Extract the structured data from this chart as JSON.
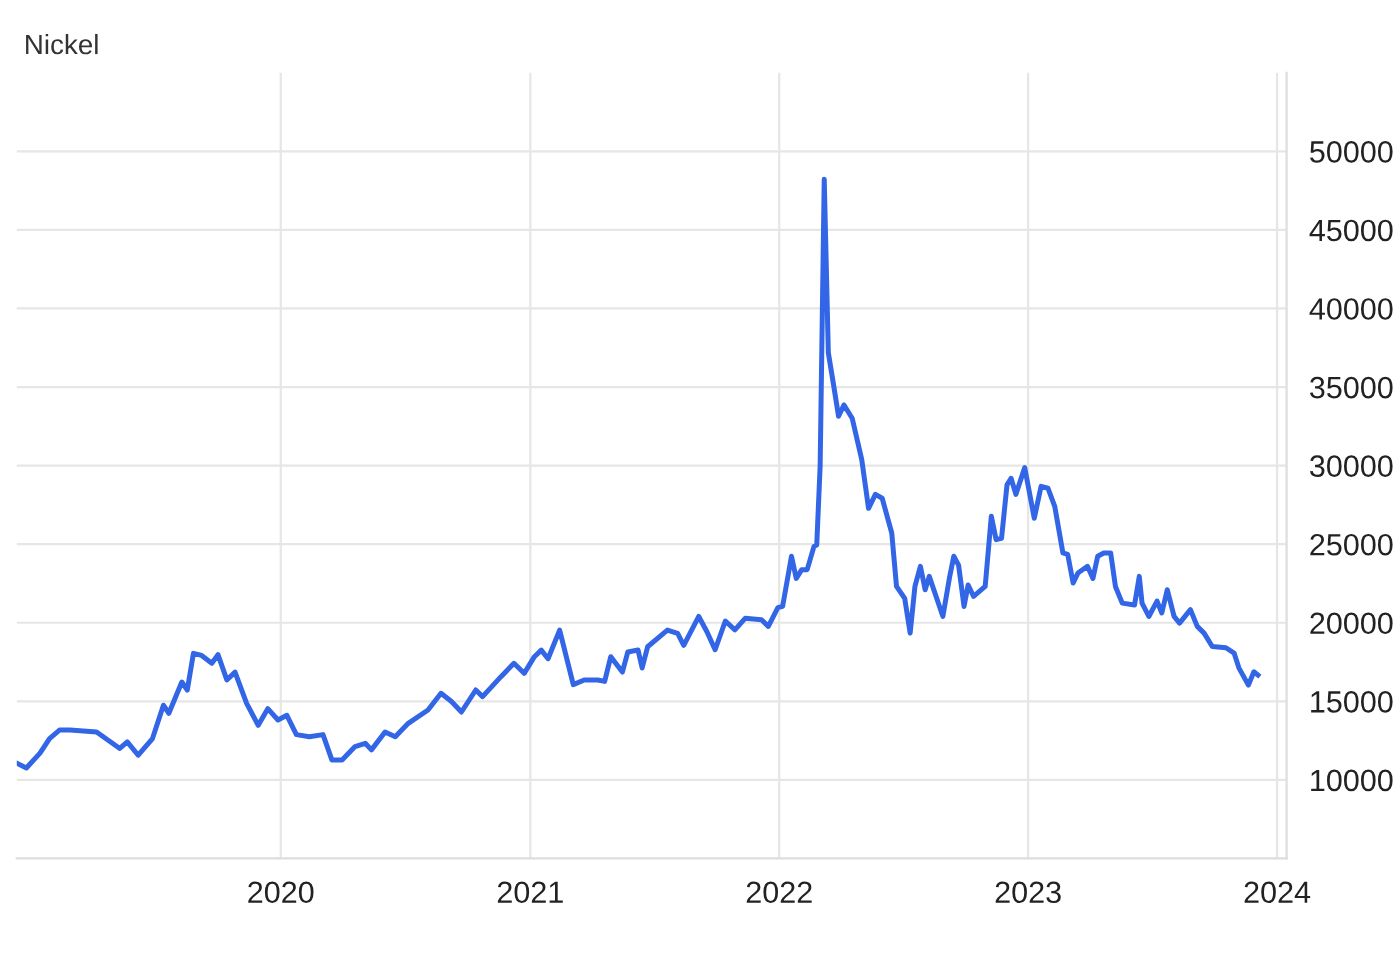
{
  "chart_data": {
    "type": "line",
    "title": "Nickel",
    "x": [
      "2018-12-10",
      "2018-12-24",
      "2019-01-13",
      "2019-01-27",
      "2019-02-11",
      "2019-02-26",
      "2019-04-06",
      "2019-05-10",
      "2019-05-21",
      "2019-06-06",
      "2019-06-27",
      "2019-07-13",
      "2019-07-21",
      "2019-08-09",
      "2019-08-17",
      "2019-08-26",
      "2019-09-07",
      "2019-09-22",
      "2019-10-01",
      "2019-10-14",
      "2019-10-26",
      "2019-11-12",
      "2019-11-29",
      "2019-12-13",
      "2019-12-28",
      "2020-01-10",
      "2020-01-24",
      "2020-02-12",
      "2020-03-03",
      "2020-03-16",
      "2020-03-31",
      "2020-04-19",
      "2020-05-04",
      "2020-05-13",
      "2020-06-02",
      "2020-06-17",
      "2020-07-06",
      "2020-08-04",
      "2020-08-23",
      "2020-09-07",
      "2020-09-22",
      "2020-10-13",
      "2020-10-23",
      "2020-11-19",
      "2020-12-08",
      "2020-12-23",
      "2021-01-07",
      "2021-01-17",
      "2021-01-27",
      "2021-02-13",
      "2021-03-05",
      "2021-03-21",
      "2021-04-10",
      "2021-04-20",
      "2021-04-29",
      "2021-05-16",
      "2021-05-24",
      "2021-06-08",
      "2021-06-14",
      "2021-06-22",
      "2021-07-21",
      "2021-08-05",
      "2021-08-14",
      "2021-09-05",
      "2021-09-17",
      "2021-09-29",
      "2021-10-14",
      "2021-10-28",
      "2021-11-12",
      "2021-12-06",
      "2021-12-16",
      "2021-12-30",
      "2022-01-06",
      "2022-01-19",
      "2022-01-26",
      "2022-02-03",
      "2022-02-11",
      "2022-02-21",
      "2022-02-25",
      "2022-03-02",
      "2022-03-08",
      "2022-03-14",
      "2022-03-22",
      "2022-03-29",
      "2022-04-06",
      "2022-04-18",
      "2022-05-02",
      "2022-05-12",
      "2022-05-22",
      "2022-06-01",
      "2022-06-15",
      "2022-06-22",
      "2022-07-04",
      "2022-07-12",
      "2022-07-19",
      "2022-07-27",
      "2022-08-03",
      "2022-08-09",
      "2022-08-29",
      "2022-09-08",
      "2022-09-14",
      "2022-09-21",
      "2022-09-29",
      "2022-10-05",
      "2022-10-13",
      "2022-10-30",
      "2022-11-08",
      "2022-11-15",
      "2022-11-23",
      "2022-12-01",
      "2022-12-07",
      "2022-12-14",
      "2022-12-27",
      "2023-01-10",
      "2023-01-20",
      "2023-01-30",
      "2023-02-09",
      "2023-02-21",
      "2023-02-28",
      "2023-03-08",
      "2023-03-15",
      "2023-03-29",
      "2023-04-06",
      "2023-04-13",
      "2023-04-22",
      "2023-05-02",
      "2023-05-09",
      "2023-05-19",
      "2023-06-06",
      "2023-06-13",
      "2023-06-17",
      "2023-06-27",
      "2023-07-09",
      "2023-07-16",
      "2023-07-24",
      "2023-08-03",
      "2023-08-11",
      "2023-08-27",
      "2023-09-06",
      "2023-09-16",
      "2023-09-28",
      "2023-10-18",
      "2023-10-30",
      "2023-11-06",
      "2023-11-20",
      "2023-11-28",
      "2023-12-04"
    ],
    "series": [
      {
        "color": "#3366e6",
        "values": [
          11060,
          10760,
          11700,
          12630,
          13180,
          13180,
          13050,
          12000,
          12420,
          11570,
          12630,
          14750,
          14240,
          16230,
          15720,
          18050,
          17920,
          17420,
          17970,
          16360,
          16860,
          14870,
          13470,
          14530,
          13810,
          14110,
          12880,
          12750,
          12880,
          11270,
          11270,
          12120,
          12330,
          11910,
          13050,
          12750,
          13600,
          14450,
          15510,
          15000,
          14320,
          15720,
          15300,
          16570,
          17420,
          16780,
          17840,
          18260,
          17710,
          19530,
          16060,
          16360,
          16360,
          16270,
          17840,
          16860,
          18140,
          18260,
          17120,
          18470,
          19530,
          19320,
          18560,
          20400,
          19430,
          18280,
          20110,
          19550,
          20280,
          20190,
          19770,
          20960,
          21040,
          24230,
          22820,
          23380,
          23380,
          24860,
          24950,
          29960,
          48220,
          37180,
          35050,
          33140,
          33860,
          33010,
          30380,
          27280,
          28170,
          27920,
          25710,
          22310,
          21550,
          19340,
          22310,
          23590,
          22100,
          22950,
          20400,
          22950,
          24230,
          23670,
          21040,
          22400,
          21680,
          22310,
          26770,
          25290,
          25370,
          28770,
          29190,
          28170,
          29870,
          26650,
          28680,
          28560,
          27410,
          24440,
          24350,
          22530,
          23160,
          23590,
          22820,
          24230,
          24440,
          24440,
          22310,
          21250,
          21130,
          22950,
          21250,
          20400,
          21380,
          20620,
          22100,
          20400,
          19980,
          20830,
          19770,
          19340,
          18490,
          18410,
          18070,
          17130,
          16030,
          16880,
          16670
        ]
      }
    ],
    "xlim": [
      "2018-12-10",
      "2024-01-15"
    ],
    "xticks": [
      {
        "value": "2020-01-01",
        "label": "2020"
      },
      {
        "value": "2021-01-01",
        "label": "2021"
      },
      {
        "value": "2022-01-01",
        "label": "2022"
      },
      {
        "value": "2023-01-01",
        "label": "2023"
      },
      {
        "value": "2024-01-01",
        "label": "2024"
      }
    ],
    "ylim": [
      5000,
      55000
    ],
    "yticks": [
      10000,
      15000,
      20000,
      25000,
      30000,
      35000,
      40000,
      45000,
      50000
    ],
    "grid": true,
    "line_style": "solid"
  }
}
